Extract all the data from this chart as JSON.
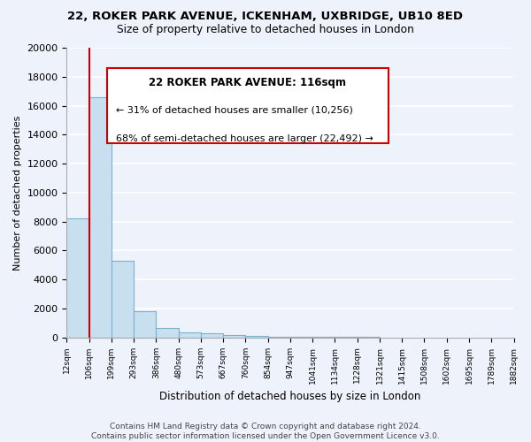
{
  "title": "22, ROKER PARK AVENUE, ICKENHAM, UXBRIDGE, UB10 8ED",
  "subtitle": "Size of property relative to detached houses in London",
  "xlabel": "Distribution of detached houses by size in London",
  "ylabel": "Number of detached properties",
  "bar_values": [
    8200,
    16600,
    5300,
    1800,
    650,
    350,
    280,
    150,
    100,
    80,
    60,
    40,
    30,
    20,
    15,
    10,
    8,
    5,
    3,
    2
  ],
  "categories": [
    "12sqm",
    "106sqm",
    "199sqm",
    "293sqm",
    "386sqm",
    "480sqm",
    "573sqm",
    "667sqm",
    "760sqm",
    "854sqm",
    "947sqm",
    "1041sqm",
    "1134sqm",
    "1228sqm",
    "1321sqm",
    "1415sqm",
    "1508sqm",
    "1602sqm",
    "1695sqm",
    "1789sqm",
    "1882sqm"
  ],
  "bar_color": "#c8dff0",
  "bar_edge_color": "#7ab0d0",
  "ylim": [
    0,
    20000
  ],
  "yticks": [
    0,
    2000,
    4000,
    6000,
    8000,
    10000,
    12000,
    14000,
    16000,
    18000,
    20000
  ],
  "property_line_color": "#cc0000",
  "annotation_title": "22 ROKER PARK AVENUE: 116sqm",
  "annotation_line1": "← 31% of detached houses are smaller (10,256)",
  "annotation_line2": "68% of semi-detached houses are larger (22,492) →",
  "annotation_box_color": "#ffffff",
  "annotation_box_edge": "#cc0000",
  "footer_line1": "Contains HM Land Registry data © Crown copyright and database right 2024.",
  "footer_line2": "Contains public sector information licensed under the Open Government Licence v3.0.",
  "background_color": "#eef2fb",
  "grid_color": "#ffffff"
}
